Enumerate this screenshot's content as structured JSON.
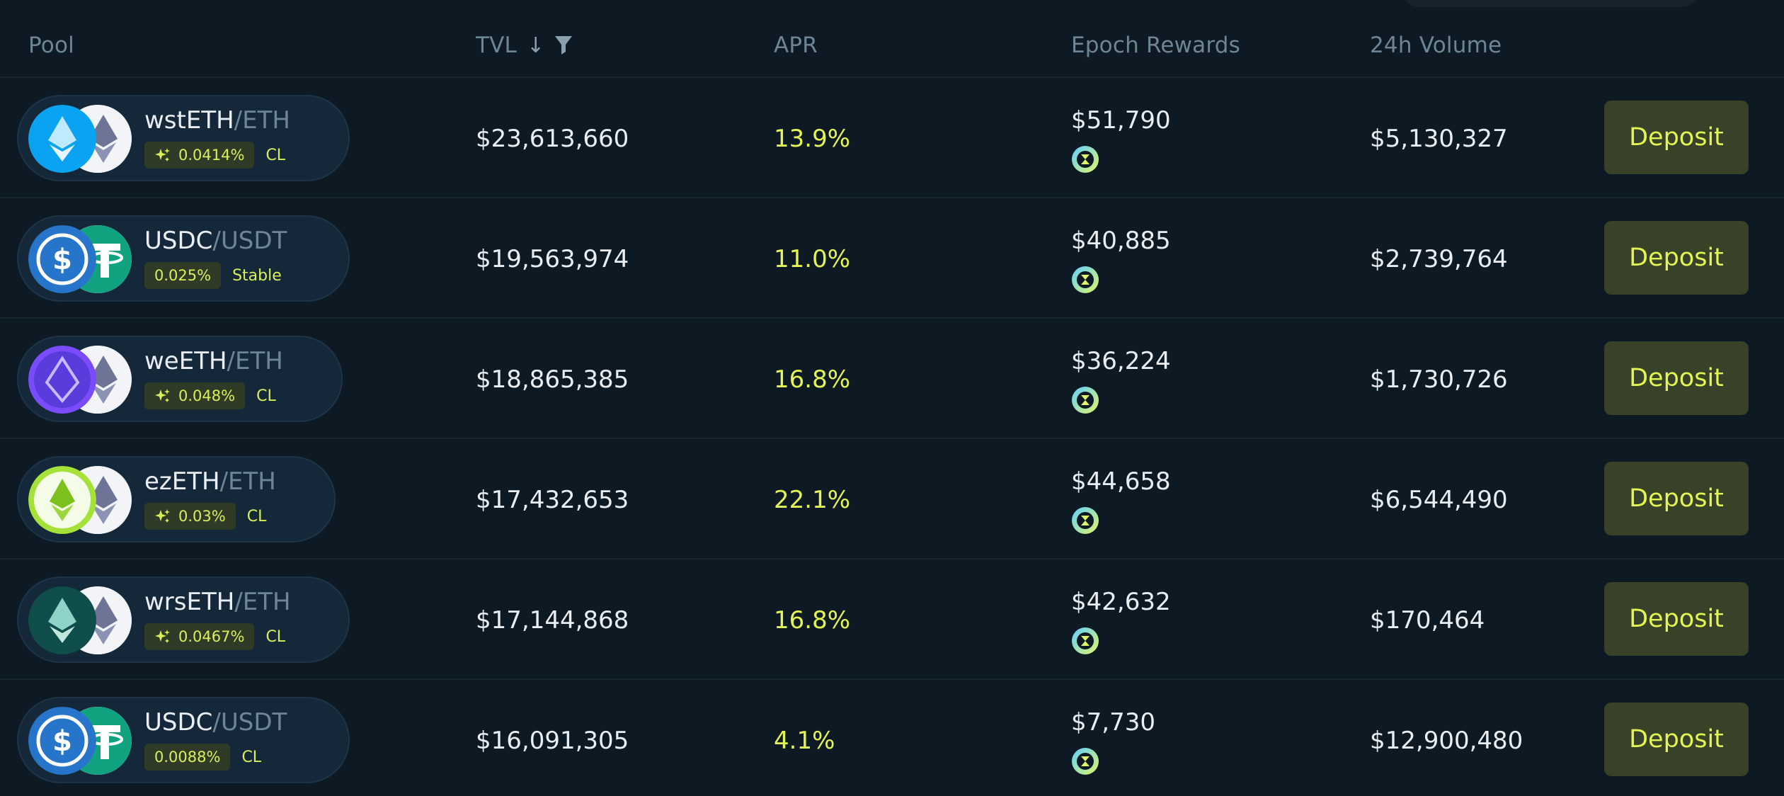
{
  "header": {
    "pool": "Pool",
    "tvl": "TVL",
    "sort_icon": "arrow-down-icon",
    "filter_icon": "funnel-icon",
    "apr": "APR",
    "epoch_rewards": "Epoch Rewards",
    "volume": "24h Volume"
  },
  "colors": {
    "background": "#0d1a24",
    "accent": "#e4f452",
    "button_bg": "#374228",
    "muted": "#6d8594"
  },
  "rows": [
    {
      "base": "wstETH",
      "quote": "/ETH",
      "fee": "0.0414%",
      "fee_icon": "sparkle-icon",
      "kind": "CL",
      "tvl": "$23,613,660",
      "apr": "13.9%",
      "rewards": "$51,790",
      "volume": "$5,130,327",
      "action": "Deposit"
    },
    {
      "base": "USDC",
      "quote": "/USDT",
      "fee": "0.025%",
      "fee_icon": "",
      "kind": "Stable",
      "tvl": "$19,563,974",
      "apr": "11.0%",
      "rewards": "$40,885",
      "volume": "$2,739,764",
      "action": "Deposit"
    },
    {
      "base": "weETH",
      "quote": "/ETH",
      "fee": "0.048%",
      "fee_icon": "sparkle-icon",
      "kind": "CL",
      "tvl": "$18,865,385",
      "apr": "16.8%",
      "rewards": "$36,224",
      "volume": "$1,730,726",
      "action": "Deposit"
    },
    {
      "base": "ezETH",
      "quote": "/ETH",
      "fee": "0.03%",
      "fee_icon": "sparkle-icon",
      "kind": "CL",
      "tvl": "$17,432,653",
      "apr": "22.1%",
      "rewards": "$44,658",
      "volume": "$6,544,490",
      "action": "Deposit"
    },
    {
      "base": "wrsETH",
      "quote": "/ETH",
      "fee": "0.0467%",
      "fee_icon": "sparkle-icon",
      "kind": "CL",
      "tvl": "$17,144,868",
      "apr": "16.8%",
      "rewards": "$42,632",
      "volume": "$170,464",
      "action": "Deposit"
    },
    {
      "base": "USDC",
      "quote": "/USDT",
      "fee": "0.0088%",
      "fee_icon": "",
      "kind": "CL",
      "tvl": "$16,091,305",
      "apr": "4.1%",
      "rewards": "$7,730",
      "volume": "$12,900,480",
      "action": "Deposit"
    }
  ]
}
